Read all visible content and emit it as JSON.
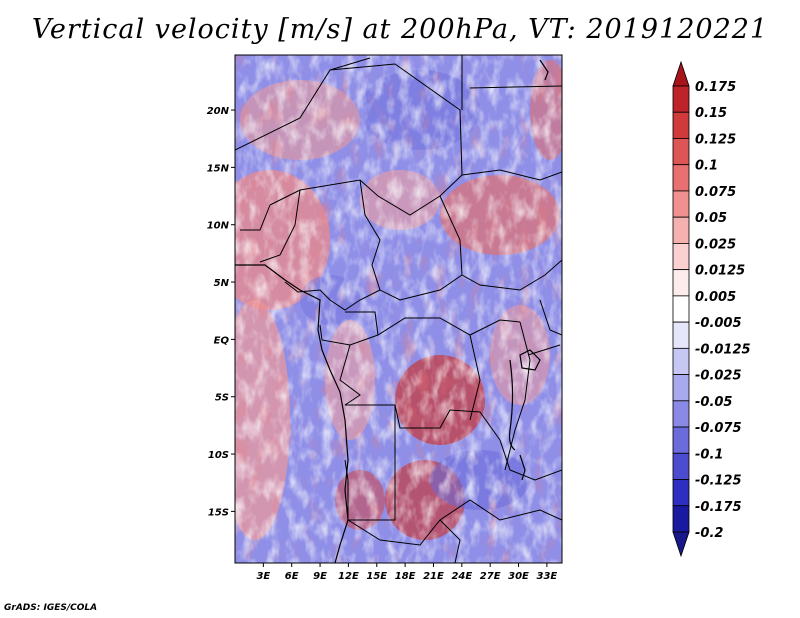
{
  "title": "Vertical velocity [m/s] at 200hPa, VT: 2019120221",
  "credit": "GrADS: IGES/COLA",
  "map": {
    "lat_ticks": [
      "20N",
      "15N",
      "10N",
      "5N",
      "EQ",
      "5S",
      "10S",
      "15S"
    ],
    "lat_values": [
      20,
      15,
      10,
      5,
      0,
      -5,
      -10,
      -15
    ],
    "lon_ticks": [
      "3E",
      "6E",
      "9E",
      "12E",
      "15E",
      "18E",
      "21E",
      "24E",
      "27E",
      "30E",
      "33E"
    ],
    "lon_values": [
      3,
      6,
      9,
      12,
      15,
      18,
      21,
      24,
      27,
      30,
      33
    ],
    "lat_range": [
      -19.5,
      24.8
    ],
    "lon_range": [
      0,
      34.6
    ]
  },
  "colorbar": {
    "labels": [
      "0.175",
      "0.15",
      "0.125",
      "0.1",
      "0.075",
      "0.05",
      "0.025",
      "0.0125",
      "0.005",
      "-0.005",
      "-0.0125",
      "-0.025",
      "-0.05",
      "-0.075",
      "-0.1",
      "-0.125",
      "-0.175",
      "-0.2"
    ],
    "colors": [
      "#a8141a",
      "#bd2328",
      "#d03a3a",
      "#dd5555",
      "#e87070",
      "#f09090",
      "#f5b0b0",
      "#fad0d0",
      "#fdecec",
      "#ffffff",
      "#e6e6fa",
      "#c7c7f4",
      "#a9a9ee",
      "#8a8ae6",
      "#6b6bdc",
      "#4c4cd0",
      "#2e2ec0",
      "#1a1aa0",
      "#18188a"
    ]
  }
}
